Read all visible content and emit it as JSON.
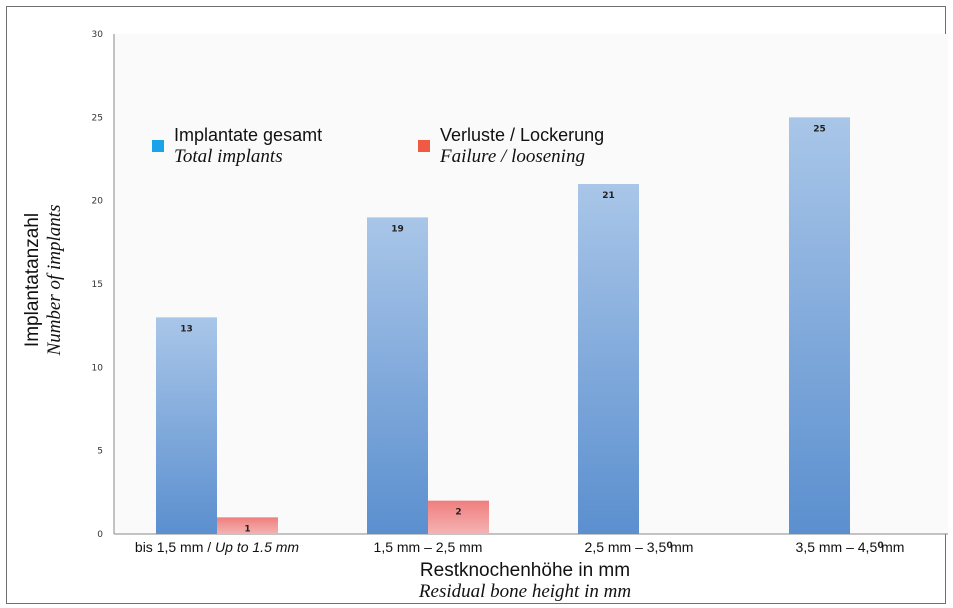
{
  "chart_data": {
    "type": "bar",
    "categories": [
      [
        "bis 1,5 mm / ",
        "Up to 1.5 mm"
      ],
      [
        "1,5 mm – 2,5 mm",
        ""
      ],
      [
        "2,5 mm – 3,5 mm",
        ""
      ],
      [
        "3,5 mm – 4,5 mm",
        ""
      ]
    ],
    "series": [
      {
        "name_de": "Implantate gesamt",
        "name_en": "Total implants",
        "values": [
          13,
          19,
          21,
          25
        ],
        "color": "#6b9bd3"
      },
      {
        "name_de": "Verluste / Lockerung",
        "name_en": "Failure / loosening",
        "values": [
          1,
          2,
          0,
          0
        ],
        "color": "#ec6b6b"
      }
    ],
    "ylabel_de": "Implantatanzahl",
    "ylabel_en": "Number of implants",
    "xlabel_de": "Restknochenhöhe in mm",
    "xlabel_en": "Residual bone height in mm",
    "ylim": [
      0,
      30
    ],
    "yticks": [
      "0",
      "5",
      "10",
      "15",
      "20",
      "25",
      "30"
    ],
    "legend_position": "top-left",
    "grid": false
  }
}
